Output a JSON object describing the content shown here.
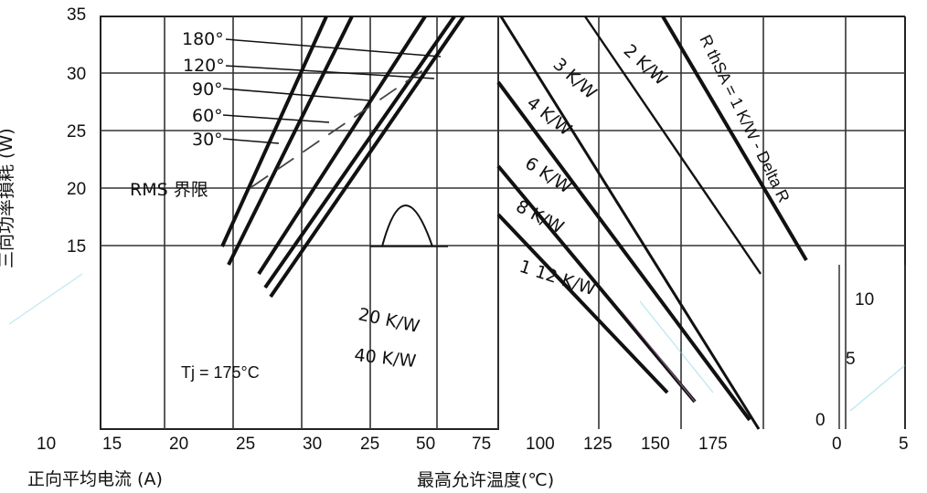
{
  "chart_data": [
    {
      "type": "line",
      "title": "",
      "xlabel": "正向平均电流 (A)",
      "ylabel": "三向功率損耗 (W)",
      "x_ticks": [
        10,
        15,
        20,
        25,
        30
      ],
      "y_ticks": [
        35,
        30,
        25,
        20,
        15
      ],
      "ylim": [
        0,
        35
      ],
      "grid": true,
      "series": [
        {
          "name": "180°",
          "points": [
            [
              23,
              0
            ],
            [
              34,
              35
            ]
          ]
        },
        {
          "name": "120°",
          "points": [
            [
              24,
              0
            ],
            [
              35,
              35
            ]
          ]
        },
        {
          "name": "90°",
          "points": [
            [
              25,
              0
            ],
            [
              36,
              35
            ]
          ]
        },
        {
          "name": "60°",
          "points": [
            [
              26,
              0
            ],
            [
              36,
              34
            ]
          ]
        },
        {
          "name": "30°",
          "points": [
            [
              22,
              0
            ],
            [
              32,
              35
            ]
          ]
        }
      ],
      "annotations": [
        "RMS 界限",
        "Tj = 175°C"
      ]
    },
    {
      "type": "line",
      "title": "",
      "xlabel": "最高允许温度(℃)",
      "x_ticks": [
        25,
        50,
        75,
        100,
        125,
        150,
        175
      ],
      "series": [
        {
          "name": "2 K/W",
          "points": [
            [
              112,
              35
            ],
            [
              175,
              2
            ]
          ]
        },
        {
          "name": "3 K/W",
          "points": [
            [
              100,
              35
            ],
            [
              175,
              2
            ]
          ]
        },
        {
          "name": "4 K/W",
          "points": [
            [
              100,
              30
            ],
            [
              175,
              2
            ]
          ]
        },
        {
          "name": "6 K/W",
          "points": [
            [
              100,
              20
            ],
            [
              175,
              2
            ]
          ]
        },
        {
          "name": "8 K/W",
          "points": [
            [
              100,
              17
            ],
            [
              175,
              2
            ]
          ]
        },
        {
          "name": "12 K/W",
          "points": [
            [
              100,
              12
            ],
            [
              175,
              2
            ]
          ]
        },
        {
          "name": "20 K/W",
          "points": [
            [
              100,
              8
            ],
            [
              175,
              2
            ]
          ]
        },
        {
          "name": "40 K/W",
          "points": [
            [
              100,
              5
            ],
            [
              175,
              2
            ]
          ]
        },
        {
          "name": "RthSA = 1 K/W - Delta R",
          "points": [
            [
              140,
              35
            ],
            [
              175,
              5
            ]
          ]
        }
      ],
      "labels": [
        "2 K/W",
        "3 K/W",
        "4 K/W",
        "6 K/W",
        "8 K/W",
        "1 12 K/W",
        "20 K/W",
        "40 K/W",
        "R thSA = 1 K/W - Delta R"
      ]
    },
    {
      "type": "line",
      "title": "",
      "x_ticks": [
        0,
        5
      ],
      "y_ticks": [
        10,
        5,
        0
      ]
    }
  ]
}
